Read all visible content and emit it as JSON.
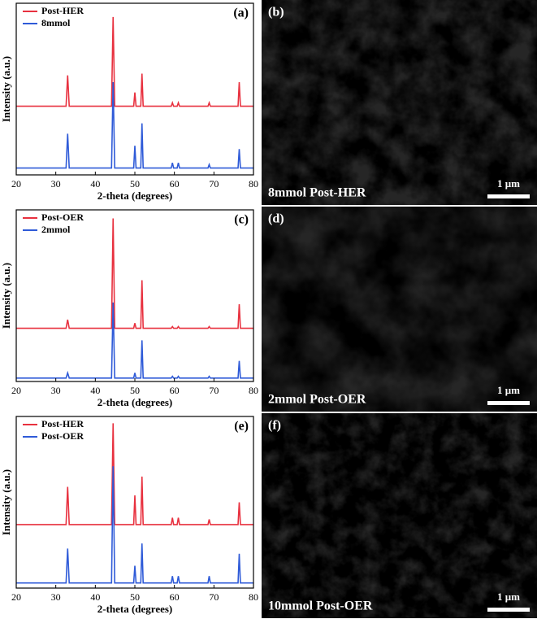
{
  "chart_data": [
    {
      "type": "line",
      "panel": "(a)",
      "xlabel": "2-theta (degrees)",
      "ylabel": "Intensity (a.u.)",
      "x": [
        20,
        32.6,
        33,
        33.4,
        44.1,
        44.5,
        44.9,
        49.7,
        50,
        50.3,
        51.5,
        51.8,
        52.1,
        59.2,
        59.5,
        59.8,
        60.7,
        61,
        61.3,
        68.5,
        68.8,
        69.1,
        76.1,
        76.4,
        76.7,
        80
      ],
      "series": [
        {
          "name": "Post-HER",
          "color": "#e8313f",
          "values": [
            40,
            40,
            58,
            40,
            40,
            92,
            40,
            40,
            48,
            40,
            40,
            59,
            40,
            40,
            42,
            40,
            40,
            42,
            40,
            40,
            42,
            40,
            40,
            54,
            40,
            40
          ]
        },
        {
          "name": "8mmol",
          "color": "#2f5bd8",
          "values": [
            4,
            4,
            24,
            4,
            4,
            54,
            4,
            4,
            17,
            4,
            4,
            30,
            4,
            4,
            7,
            4,
            4,
            7,
            4,
            4,
            6,
            4,
            4,
            15,
            4,
            4
          ]
        }
      ],
      "xlim": [
        20,
        80
      ],
      "ylim": [
        0,
        100
      ],
      "xticks": [
        20,
        30,
        40,
        50,
        60,
        70,
        80
      ],
      "legend": "upper left"
    },
    {
      "type": "line",
      "panel": "(c)",
      "xlabel": "2-theta (degrees)",
      "ylabel": "Intensity (a.u.)",
      "x": [
        20,
        32.6,
        33,
        33.4,
        44.1,
        44.5,
        44.9,
        49.7,
        50,
        50.3,
        51.5,
        51.8,
        52.1,
        59.2,
        59.5,
        59.8,
        60.7,
        61,
        61.3,
        68.5,
        68.8,
        69.1,
        76.1,
        76.4,
        76.7,
        80
      ],
      "series": [
        {
          "name": "Post-OER",
          "color": "#e8313f",
          "values": [
            31,
            31,
            36,
            31,
            31,
            95,
            31,
            31,
            34,
            31,
            31,
            59,
            31,
            31,
            32,
            31,
            31,
            32,
            31,
            31,
            32,
            31,
            31,
            45,
            31,
            31
          ]
        },
        {
          "name": "2mmol",
          "color": "#2f5bd8",
          "values": [
            2,
            2,
            5,
            2,
            2,
            46,
            2,
            2,
            5,
            2,
            2,
            24,
            2,
            2,
            3,
            2,
            2,
            3,
            2,
            2,
            3,
            2,
            2,
            12,
            2,
            2
          ]
        }
      ],
      "xlim": [
        20,
        80
      ],
      "ylim": [
        0,
        100
      ],
      "xticks": [
        20,
        30,
        40,
        50,
        60,
        70,
        80
      ],
      "legend": "upper left"
    },
    {
      "type": "line",
      "panel": "(e)",
      "xlabel": "2-theta (degrees)",
      "ylabel": "Intensity (a.u.)",
      "x": [
        20,
        32.6,
        33,
        33.4,
        44.1,
        44.5,
        44.9,
        49.7,
        50,
        50.3,
        51.5,
        51.8,
        52.1,
        59.2,
        59.5,
        59.8,
        60.7,
        61,
        61.3,
        68.5,
        68.8,
        69.1,
        76.1,
        76.4,
        76.7,
        80
      ],
      "series": [
        {
          "name": "Post-HER",
          "color": "#e8313f",
          "values": [
            37,
            37,
            59,
            37,
            37,
            96,
            37,
            37,
            54,
            37,
            37,
            65,
            37,
            37,
            41,
            37,
            37,
            41,
            37,
            37,
            40,
            37,
            37,
            50,
            37,
            37
          ]
        },
        {
          "name": "Post-OER",
          "color": "#2f5bd8",
          "values": [
            3,
            3,
            23,
            3,
            3,
            71,
            3,
            3,
            13,
            3,
            3,
            26,
            3,
            3,
            7,
            3,
            3,
            7,
            3,
            3,
            7,
            3,
            3,
            20,
            3,
            3
          ]
        }
      ],
      "xlim": [
        20,
        80
      ],
      "ylim": [
        0,
        100
      ],
      "xticks": [
        20,
        30,
        40,
        50,
        60,
        70,
        80
      ],
      "legend": "upper left"
    }
  ],
  "images": [
    {
      "label": "(b)",
      "caption": "8mmol Post-HER",
      "scale_bar": "1 μm"
    },
    {
      "label": "(d)",
      "caption": "2mmol Post-OER",
      "scale_bar": "1 μm"
    },
    {
      "label": "(f)",
      "caption": "10mmol Post-OER",
      "scale_bar": "1 μm"
    }
  ]
}
